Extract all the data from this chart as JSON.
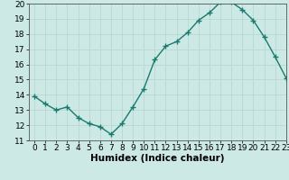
{
  "x": [
    0,
    1,
    2,
    3,
    4,
    5,
    6,
    7,
    8,
    9,
    10,
    11,
    12,
    13,
    14,
    15,
    16,
    17,
    18,
    19,
    20,
    21,
    22,
    23
  ],
  "y": [
    13.9,
    13.4,
    13.0,
    13.2,
    12.5,
    12.1,
    11.9,
    11.4,
    12.1,
    13.2,
    14.4,
    16.3,
    17.2,
    17.5,
    18.1,
    18.9,
    19.4,
    20.1,
    20.1,
    19.6,
    18.9,
    17.8,
    16.5,
    15.1
  ],
  "line_color": "#1a7a6e",
  "marker": "+",
  "marker_size": 4,
  "marker_edge_width": 1.0,
  "bg_color": "#cce9e5",
  "grid_color": "#b8d8d4",
  "xlabel": "Humidex (Indice chaleur)",
  "ylim": [
    11,
    20
  ],
  "xlim": [
    -0.5,
    23
  ],
  "yticks": [
    11,
    12,
    13,
    14,
    15,
    16,
    17,
    18,
    19,
    20
  ],
  "xticks": [
    0,
    1,
    2,
    3,
    4,
    5,
    6,
    7,
    8,
    9,
    10,
    11,
    12,
    13,
    14,
    15,
    16,
    17,
    18,
    19,
    20,
    21,
    22,
    23
  ],
  "tick_label_fontsize": 6.5,
  "xlabel_fontsize": 7.5,
  "line_width": 1.0
}
